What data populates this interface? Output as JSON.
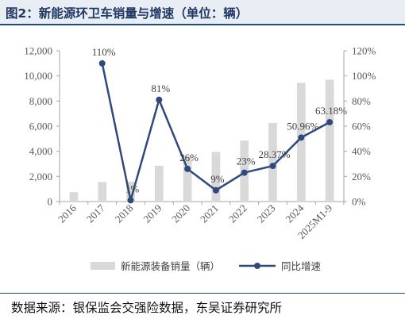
{
  "header": {
    "title": "图2：新能源环卫车销量与增速（单位：辆）"
  },
  "footer": {
    "source": "数据来源：银保监会交强险数据，东吴证券研究所"
  },
  "colors": {
    "bar": "#d9d9d9",
    "line": "#2e4a7d",
    "axis": "#a6a6a6",
    "title_bg": "#e9eef4",
    "rule": "#1f4e79"
  },
  "chart_data": {
    "type": "bar+line",
    "categories": [
      "2016",
      "2017",
      "2018",
      "2019",
      "2020",
      "2021",
      "2022",
      "2023",
      "2024",
      "2025M1-9"
    ],
    "series": [
      {
        "name": "新能源装备销量（辆）",
        "type": "bar",
        "axis": "left",
        "values": [
          750,
          1560,
          1580,
          2850,
          3600,
          3950,
          4850,
          6250,
          9450,
          9700
        ]
      },
      {
        "name": "同比增速",
        "type": "line",
        "axis": "right",
        "values": [
          null,
          110,
          1,
          81,
          26,
          9,
          23,
          28.37,
          50.96,
          63.18
        ],
        "labels": [
          "",
          "110%",
          "1%",
          "81%",
          "26%",
          "9%",
          "23%",
          "28.37%",
          "50.96%",
          "63.18%"
        ]
      }
    ],
    "y_left": {
      "lim": [
        0,
        12000
      ],
      "ticks": [
        0,
        2000,
        4000,
        6000,
        8000,
        10000,
        12000
      ],
      "tick_labels": [
        "0",
        "2,000",
        "4,000",
        "6,000",
        "8,000",
        "10,000",
        "12,000"
      ]
    },
    "y_right": {
      "lim": [
        0,
        120
      ],
      "ticks": [
        0,
        20,
        40,
        60,
        80,
        100,
        120
      ],
      "tick_labels": [
        "0%",
        "20%",
        "40%",
        "60%",
        "80%",
        "100%",
        "120%"
      ]
    },
    "grid": false,
    "legend": "bottom"
  }
}
